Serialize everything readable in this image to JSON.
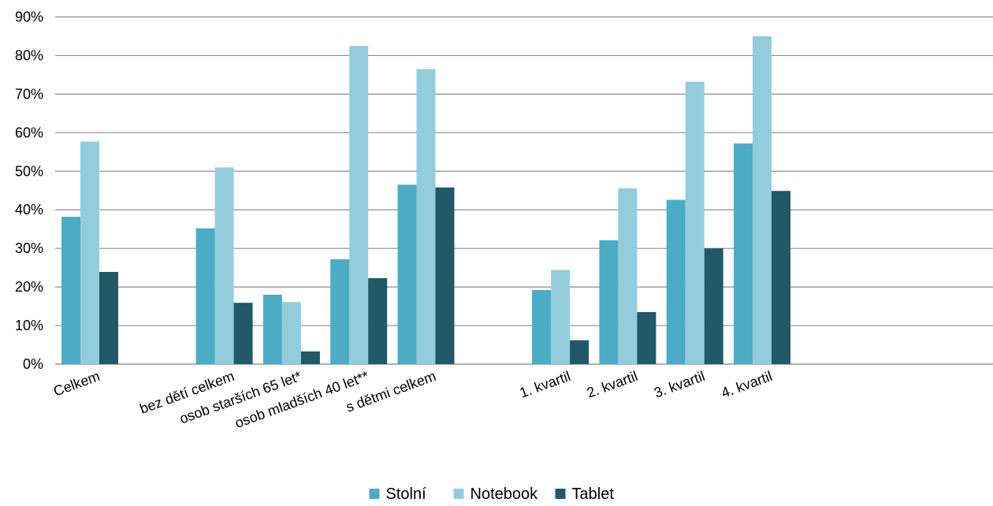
{
  "chart_data": {
    "type": "bar",
    "categories": [
      "Celkem",
      "",
      "bez dětí celkem",
      "osob starších 65 let*",
      "osob mladších 40 let**",
      "s dětmi celkem",
      "",
      "1. kvartil",
      "2. kvartil",
      "3. kvartil",
      "4. kvartil"
    ],
    "series": [
      {
        "name": "Stolní",
        "color": "#4bacc6",
        "values": [
          38.2,
          null,
          35.2,
          18.0,
          27.2,
          46.5,
          null,
          19.2,
          32.1,
          42.6,
          57.2
        ]
      },
      {
        "name": "Notebook",
        "color": "#93cddd",
        "values": [
          57.7,
          null,
          51.0,
          16.1,
          82.5,
          76.5,
          null,
          24.4,
          45.6,
          73.2,
          85.0
        ]
      },
      {
        "name": "Tablet",
        "color": "#215968",
        "values": [
          23.9,
          null,
          15.9,
          3.3,
          22.3,
          45.8,
          null,
          6.2,
          13.5,
          30.0,
          44.9
        ]
      }
    ],
    "ylim": [
      0,
      90
    ],
    "yticks": [
      "0%",
      "10%",
      "20%",
      "30%",
      "40%",
      "50%",
      "60%",
      "70%",
      "80%",
      "90%"
    ],
    "grid": true,
    "legend_position": "bottom"
  }
}
